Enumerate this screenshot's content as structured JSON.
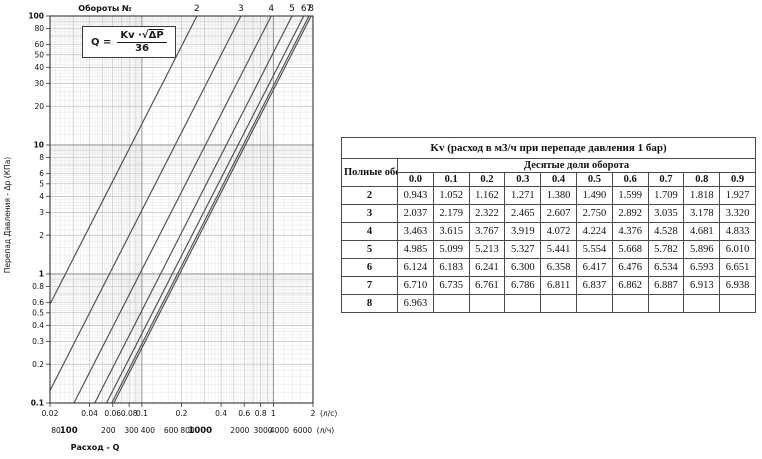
{
  "formula": {
    "lhs": "Q =",
    "numerator_prefix": "Kv ·√",
    "numerator_radicand": "ΔP",
    "denominator": "36"
  },
  "chart_data": {
    "type": "line",
    "top_axis_label": "Обороты №",
    "ylabel": "Перепад Давления - Δp (КПа)",
    "xlabel": "Расход -  Q",
    "x_unit_primary": "(л/с)",
    "x_unit_secondary": "(л/ч)",
    "xlim_ls": [
      0.02,
      2
    ],
    "ylim_kpa": [
      0.1,
      100
    ],
    "grid": "log-log dense",
    "legend_position": "top-axis",
    "x_ticks_ls": [
      0.02,
      0.04,
      0.06,
      0.08,
      0.1,
      0.2,
      0.4,
      0.6,
      0.8,
      1,
      2
    ],
    "x_ticks_lh": [
      80,
      100,
      200,
      300,
      400,
      600,
      800,
      1000,
      2000,
      3000,
      4000,
      6000
    ],
    "x_ticks_lh_bold": [
      100,
      1000
    ],
    "y_ticks": [
      100,
      80,
      60,
      50,
      40,
      30,
      20,
      10,
      8,
      6,
      5,
      4,
      3,
      2,
      1,
      0.8,
      0.6,
      0.5,
      0.4,
      0.3,
      0.2,
      0.1
    ],
    "y_ticks_bold": [
      100,
      10,
      1,
      0.1
    ],
    "relation": "dP_kPa = 100 * (3.6 * Q_ls / Kv)^2",
    "series": [
      {
        "name": "2",
        "kv": 0.943
      },
      {
        "name": "3",
        "kv": 2.037
      },
      {
        "name": "4",
        "kv": 3.463
      },
      {
        "name": "5",
        "kv": 4.985
      },
      {
        "name": "6",
        "kv": 6.124
      },
      {
        "name": "7",
        "kv": 6.71
      },
      {
        "name": "8",
        "kv": 6.963
      }
    ]
  },
  "table": {
    "title": "Kv (расход в м3/ч при перепаде давления 1 бар)",
    "col_header_left": "Полные обороты",
    "col_header_right": "Десятые доли оборота",
    "tenths": [
      "0.0",
      "0.1",
      "0.2",
      "0.3",
      "0.4",
      "0.5",
      "0.6",
      "0.7",
      "0.8",
      "0.9"
    ],
    "rows": [
      {
        "turns": "2",
        "values": [
          "0.943",
          "1.052",
          "1.162",
          "1.271",
          "1.380",
          "1.490",
          "1.599",
          "1.709",
          "1.818",
          "1.927"
        ]
      },
      {
        "turns": "3",
        "values": [
          "2.037",
          "2.179",
          "2.322",
          "2.465",
          "2.607",
          "2.750",
          "2.892",
          "3.035",
          "3.178",
          "3.320"
        ]
      },
      {
        "turns": "4",
        "values": [
          "3.463",
          "3.615",
          "3.767",
          "3.919",
          "4.072",
          "4.224",
          "4.376",
          "4.528",
          "4.681",
          "4.833"
        ]
      },
      {
        "turns": "5",
        "values": [
          "4.985",
          "5.099",
          "5.213",
          "5.327",
          "5.441",
          "5.554",
          "5.668",
          "5.782",
          "5.896",
          "6.010"
        ]
      },
      {
        "turns": "6",
        "values": [
          "6.124",
          "6.183",
          "6.241",
          "6.300",
          "6.358",
          "6.417",
          "6.476",
          "6.534",
          "6.593",
          "6.651"
        ]
      },
      {
        "turns": "7",
        "values": [
          "6.710",
          "6.735",
          "6.761",
          "6.786",
          "6.811",
          "6.837",
          "6.862",
          "6.887",
          "6.913",
          "6.938"
        ]
      },
      {
        "turns": "8",
        "values": [
          "6.963",
          "",
          "",
          "",
          "",
          "",
          "",
          "",
          "",
          ""
        ]
      }
    ]
  },
  "colors": {
    "curve": "#4f4f4f",
    "grid_fine": "#e0e0e0",
    "grid_mid": "#b5b5b5",
    "grid_major": "#8a8a8a",
    "frame": "#333333",
    "text": "#111111"
  }
}
